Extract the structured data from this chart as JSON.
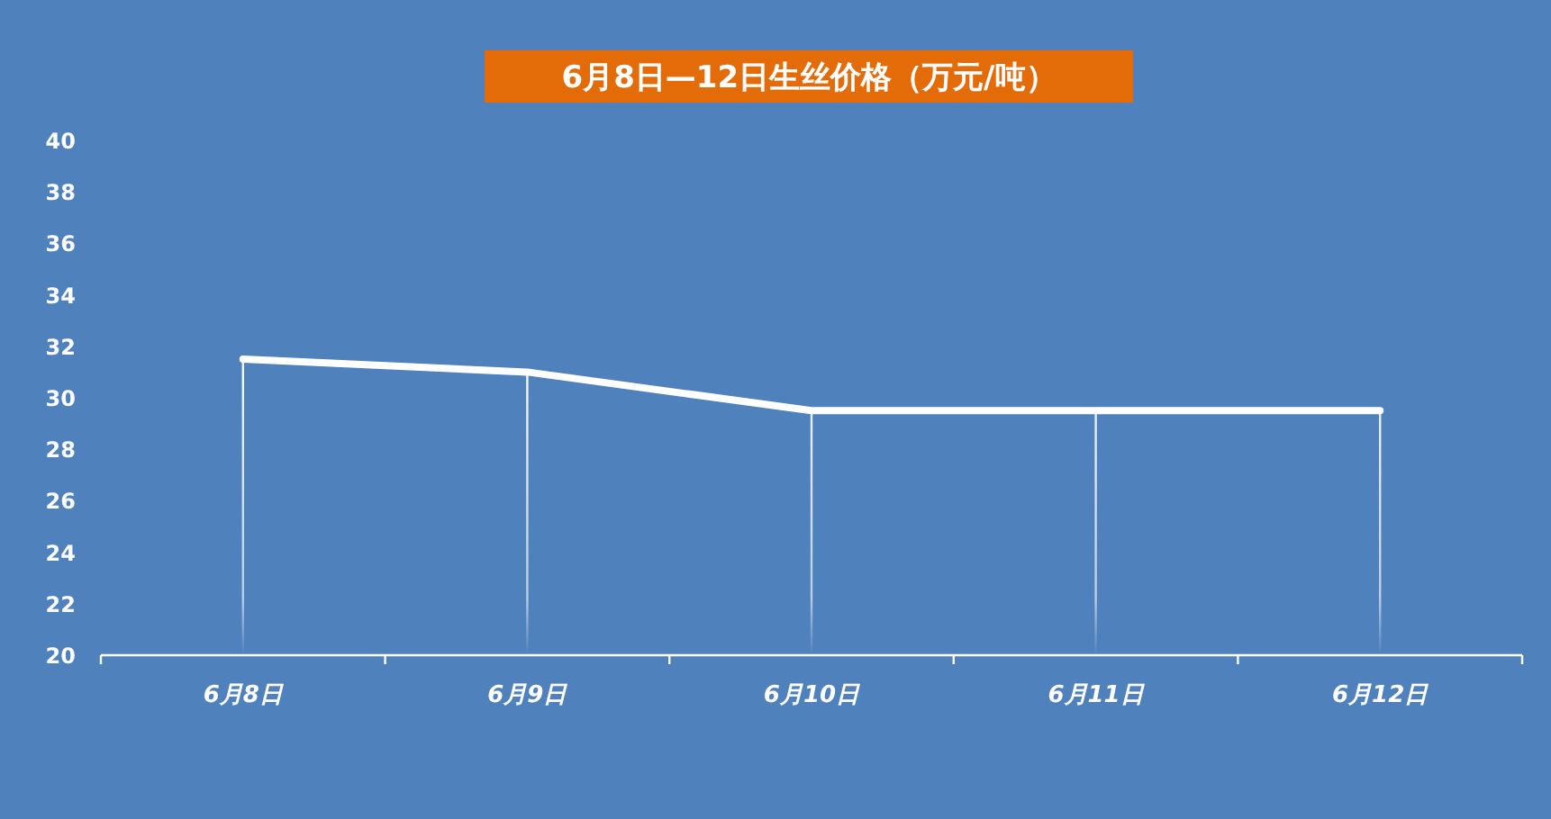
{
  "chart_data": {
    "type": "line",
    "title": "6月8日—12日生丝价格（万元/吨）",
    "categories": [
      "6月8日",
      "6月9日",
      "6月10日",
      "6月11日",
      "6月12日"
    ],
    "series": [
      {
        "color": "#ffffff",
        "values": [
          31.5,
          31,
          29.5,
          29.5,
          29.5
        ]
      }
    ],
    "ylim": [
      20,
      40
    ],
    "yticks": [
      20,
      22,
      24,
      26,
      28,
      30,
      32,
      34,
      36,
      38,
      40
    ],
    "grid": false,
    "marker": "none",
    "line_style": "solid"
  }
}
